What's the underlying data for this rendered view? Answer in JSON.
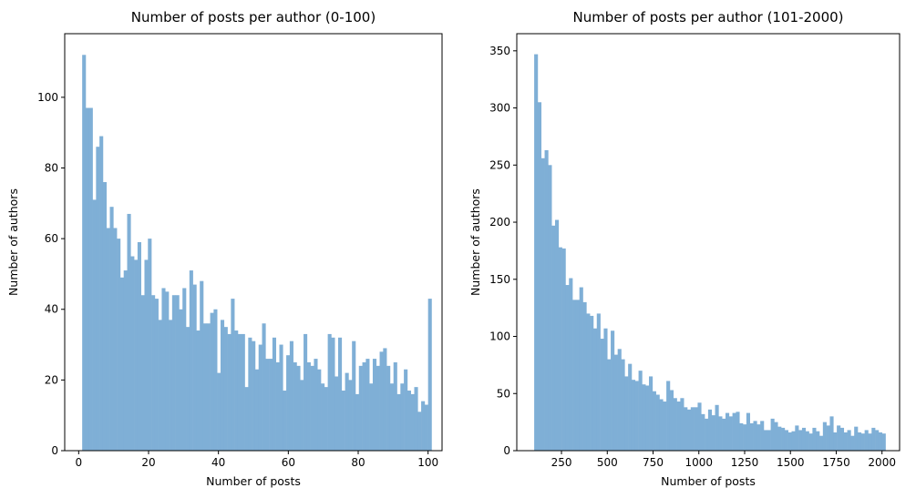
{
  "chart_data": [
    {
      "type": "bar",
      "title": "Number of posts per author (0-100)",
      "xlabel": "Number of posts",
      "ylabel": "Number of authors",
      "xlim": [
        -4,
        104
      ],
      "ylim": [
        0,
        118
      ],
      "xticks": [
        0,
        20,
        40,
        60,
        80,
        100
      ],
      "yticks": [
        0,
        20,
        40,
        60,
        80,
        100
      ],
      "bin_start": 1,
      "bin_width": 0.99,
      "color": "#7fafd6",
      "values": [
        112,
        97,
        97,
        71,
        86,
        89,
        76,
        63,
        69,
        63,
        60,
        49,
        51,
        67,
        55,
        54,
        59,
        44,
        54,
        60,
        44,
        43,
        37,
        46,
        45,
        37,
        44,
        44,
        40,
        46,
        35,
        51,
        47,
        34,
        48,
        36,
        36,
        39,
        40,
        22,
        37,
        35,
        33,
        43,
        34,
        33,
        33,
        18,
        32,
        31,
        23,
        30,
        36,
        26,
        26,
        32,
        25,
        30,
        17,
        27,
        31,
        25,
        24,
        20,
        33,
        25,
        24,
        26,
        23,
        19,
        18,
        33,
        32,
        21,
        32,
        17,
        22,
        20,
        31,
        16,
        24,
        25,
        26,
        19,
        26,
        24,
        28,
        29,
        24,
        19,
        25,
        16,
        19,
        23,
        17,
        16,
        18,
        11,
        14,
        13,
        43
      ]
    },
    {
      "type": "bar",
      "title": "Number of posts per author (101-2000)",
      "xlabel": "Number of posts",
      "ylabel": "Number of authors",
      "xlim": [
        6,
        2096
      ],
      "ylim": [
        0,
        365
      ],
      "xticks": [
        250,
        500,
        750,
        1000,
        1250,
        1500,
        1750,
        2000
      ],
      "yticks": [
        0,
        50,
        100,
        150,
        200,
        250,
        300,
        350
      ],
      "bin_start": 101,
      "bin_width": 18.99,
      "color": "#7fafd6",
      "values": [
        347,
        305,
        256,
        263,
        250,
        197,
        202,
        178,
        177,
        145,
        151,
        132,
        132,
        143,
        130,
        120,
        118,
        107,
        120,
        98,
        107,
        80,
        105,
        84,
        89,
        80,
        65,
        76,
        62,
        61,
        70,
        58,
        57,
        65,
        52,
        49,
        45,
        43,
        61,
        53,
        46,
        43,
        46,
        38,
        36,
        38,
        38,
        42,
        32,
        28,
        36,
        31,
        40,
        30,
        28,
        33,
        30,
        33,
        34,
        24,
        23,
        33,
        24,
        26,
        23,
        26,
        18,
        18,
        28,
        25,
        21,
        20,
        18,
        16,
        17,
        22,
        18,
        20,
        17,
        15,
        20,
        17,
        13,
        25,
        22,
        30,
        16,
        22,
        20,
        16,
        18,
        13,
        21,
        16,
        15,
        18,
        15,
        20,
        18,
        16,
        15
      ]
    }
  ]
}
